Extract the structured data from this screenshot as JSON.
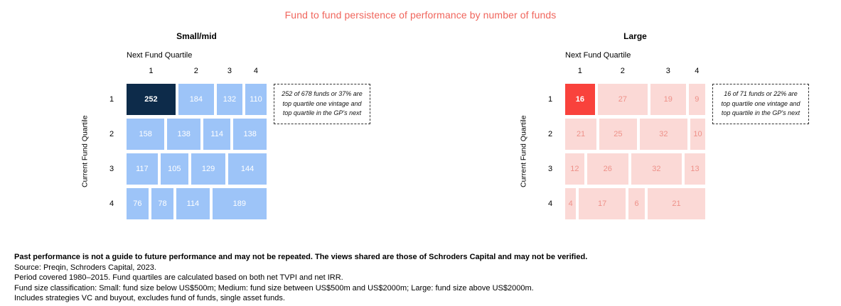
{
  "title": "Fund to fund persistence of performance by number of funds",
  "title_color": "#f0655c",
  "chart_data": [
    {
      "type": "heatmap",
      "title": "Small/mid",
      "x_axis_title": "Next Fund Quartile",
      "y_axis_title": "Current Fund Quartile",
      "columns": [
        "1",
        "2",
        "3",
        "4"
      ],
      "rows": [
        "1",
        "2",
        "3",
        "4"
      ],
      "values": [
        [
          252,
          184,
          132,
          110
        ],
        [
          158,
          138,
          114,
          138
        ],
        [
          117,
          105,
          129,
          144
        ],
        [
          76,
          78,
          114,
          189
        ]
      ],
      "annotation": "252 of 678 funds or 37% are top quartile one vintage and top quartile in the GP's next",
      "highlight_cell": {
        "row": 0,
        "col": 0
      },
      "colors": {
        "highlight_bg": "#0d2b4a",
        "highlight_text": "#ffffff",
        "cell_bg": "#9dc4f8",
        "cell_text": "#ffffff"
      },
      "layout": "cell widths proportional to value within each row; legend none; grid off"
    },
    {
      "type": "heatmap",
      "title": "Large",
      "x_axis_title": "Next Fund Quartile",
      "y_axis_title": "Current Fund Quartile",
      "columns": [
        "1",
        "2",
        "3",
        "4"
      ],
      "rows": [
        "1",
        "2",
        "3",
        "4"
      ],
      "values": [
        [
          16,
          27,
          19,
          9
        ],
        [
          21,
          25,
          32,
          10
        ],
        [
          12,
          26,
          32,
          13
        ],
        [
          4,
          17,
          6,
          21
        ]
      ],
      "annotation": "16 of 71 funds or 22% are top quartile one vintage and top quartile in the GP's next",
      "highlight_cell": {
        "row": 0,
        "col": 0
      },
      "colors": {
        "highlight_bg": "#f9423c",
        "highlight_text": "#ffffff",
        "cell_bg": "#fbd9d6",
        "cell_text": "#ee9189"
      },
      "layout": "cell widths proportional to value within each row; legend none; grid off"
    }
  ],
  "footnotes": [
    "Past performance is not a guide to future performance and may not be repeated. The views shared are those of Schroders Capital and may not be verified.",
    "Source: Preqin, Schroders Capital, 2023.",
    "Period covered 1980–2015. Fund quartiles are calculated based on both net TVPI and net IRR.",
    "Fund size classification: Small: fund size below US$500m; Medium: fund size between US$500m and US$2000m; Large: fund size above US$2000m.",
    "Includes strategies VC and buyout, excludes fund of funds, single asset funds."
  ]
}
